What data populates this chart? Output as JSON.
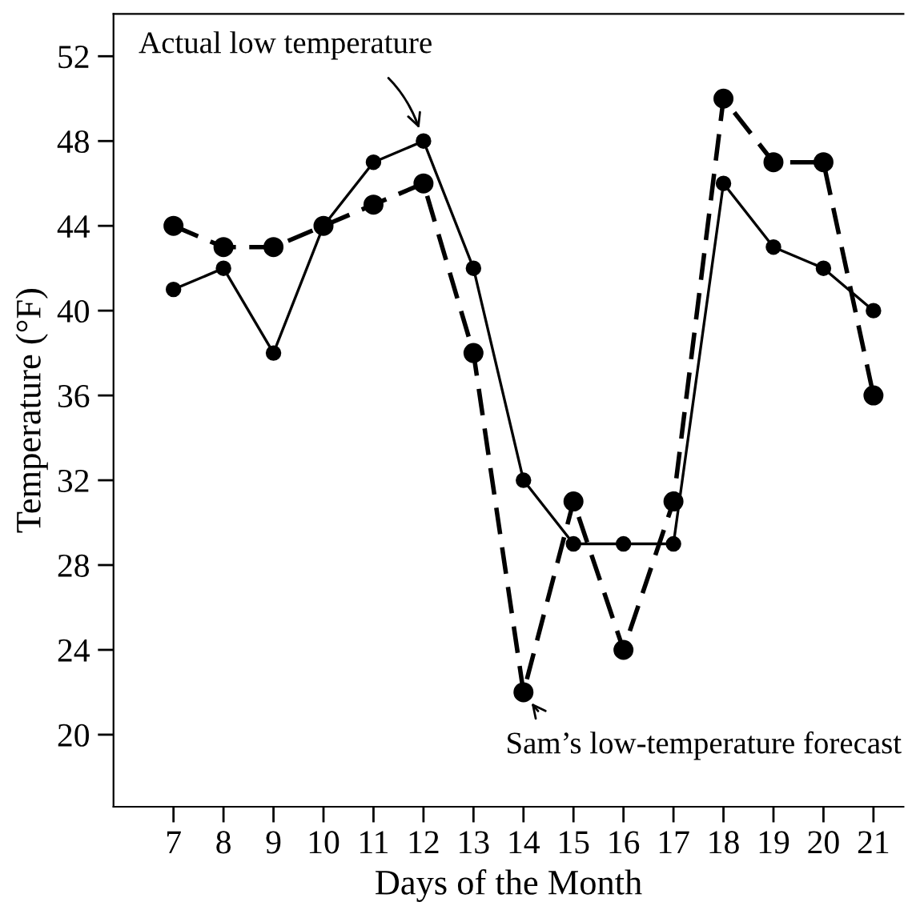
{
  "chart_data": {
    "type": "line",
    "xlabel": "Days of the Month",
    "ylabel": "Temperature (°F)",
    "x": [
      7,
      8,
      9,
      10,
      11,
      12,
      13,
      14,
      15,
      16,
      17,
      18,
      19,
      20,
      21
    ],
    "series": [
      {
        "color": "#000000",
        "line_style": "solid",
        "values": [
          41,
          42,
          38,
          44,
          47,
          48,
          42,
          32,
          29,
          29,
          29,
          46,
          43,
          42,
          40
        ]
      },
      {
        "color": "#000000",
        "line_style": "dashed",
        "values": [
          44,
          43,
          43,
          44,
          45,
          46,
          38,
          22,
          31,
          24,
          31,
          50,
          47,
          47,
          36
        ]
      }
    ],
    "annotations": [
      {
        "text": "Actual low temperature",
        "x": 12,
        "y": 48
      },
      {
        "text": "Sam’s low-temperature forecast",
        "x": 14,
        "y": 22
      }
    ],
    "xlim": [
      5.8,
      21.6
    ],
    "ylim": [
      16.6,
      54
    ],
    "xticks": [
      7,
      8,
      9,
      10,
      11,
      12,
      13,
      14,
      15,
      16,
      17,
      18,
      19,
      20,
      21
    ],
    "yticks": [
      20,
      24,
      28,
      32,
      36,
      40,
      44,
      48,
      52
    ],
    "marker": "circle",
    "grid": false,
    "legend": false
  }
}
